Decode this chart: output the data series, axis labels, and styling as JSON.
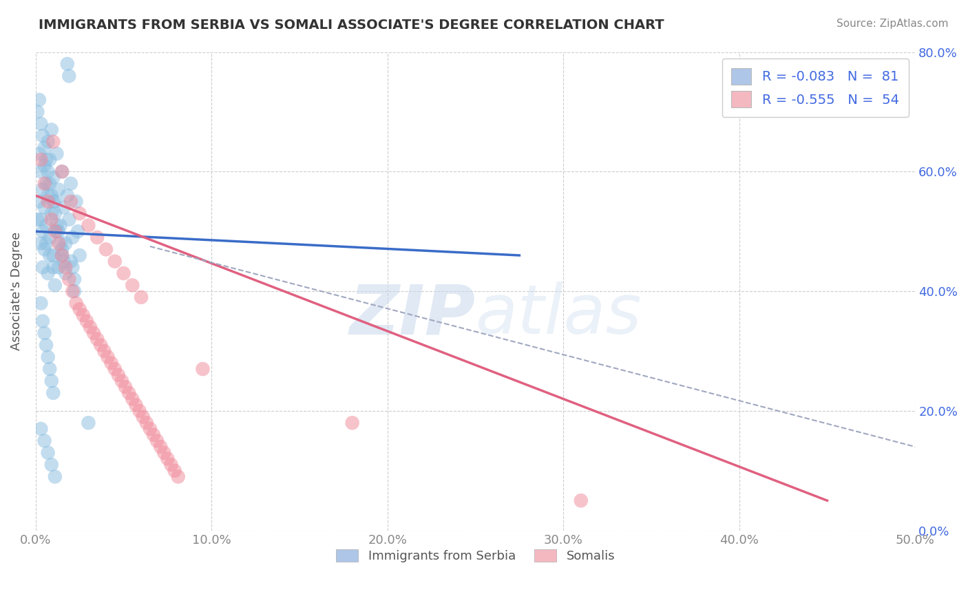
{
  "title": "IMMIGRANTS FROM SERBIA VS SOMALI ASSOCIATE'S DEGREE CORRELATION CHART",
  "source": "Source: ZipAtlas.com",
  "ylabel": "Associate's Degree",
  "xlim": [
    0.0,
    0.5
  ],
  "ylim": [
    0.0,
    0.8
  ],
  "xticks": [
    0.0,
    0.1,
    0.2,
    0.3,
    0.4,
    0.5
  ],
  "xticklabels": [
    "0.0%",
    "10.0%",
    "20.0%",
    "30.0%",
    "40.0%",
    "50.0%"
  ],
  "yticks": [
    0.0,
    0.2,
    0.4,
    0.6,
    0.8
  ],
  "yticklabels": [
    "0.0%",
    "20.0%",
    "40.0%",
    "60.0%",
    "80.0%"
  ],
  "blue_scatter_x": [
    0.001,
    0.002,
    0.002,
    0.003,
    0.003,
    0.004,
    0.004,
    0.005,
    0.005,
    0.005,
    0.006,
    0.006,
    0.007,
    0.007,
    0.007,
    0.008,
    0.008,
    0.009,
    0.009,
    0.01,
    0.01,
    0.011,
    0.011,
    0.012,
    0.012,
    0.013,
    0.013,
    0.014,
    0.015,
    0.015,
    0.016,
    0.017,
    0.018,
    0.019,
    0.02,
    0.021,
    0.022,
    0.023,
    0.024,
    0.025,
    0.001,
    0.002,
    0.003,
    0.004,
    0.005,
    0.006,
    0.007,
    0.008,
    0.009,
    0.01,
    0.011,
    0.012,
    0.013,
    0.014,
    0.015,
    0.016,
    0.017,
    0.018,
    0.019,
    0.02,
    0.021,
    0.022,
    0.003,
    0.004,
    0.005,
    0.006,
    0.007,
    0.008,
    0.009,
    0.01,
    0.003,
    0.005,
    0.007,
    0.009,
    0.011,
    0.003,
    0.004,
    0.006,
    0.008,
    0.01,
    0.03
  ],
  "blue_scatter_y": [
    0.52,
    0.63,
    0.55,
    0.6,
    0.48,
    0.57,
    0.44,
    0.61,
    0.54,
    0.47,
    0.58,
    0.51,
    0.65,
    0.56,
    0.43,
    0.62,
    0.49,
    0.67,
    0.53,
    0.59,
    0.46,
    0.55,
    0.41,
    0.63,
    0.5,
    0.57,
    0.44,
    0.51,
    0.6,
    0.47,
    0.54,
    0.48,
    0.56,
    0.52,
    0.45,
    0.49,
    0.42,
    0.55,
    0.5,
    0.46,
    0.7,
    0.72,
    0.68,
    0.66,
    0.64,
    0.62,
    0.6,
    0.58,
    0.56,
    0.55,
    0.53,
    0.51,
    0.5,
    0.48,
    0.46,
    0.45,
    0.43,
    0.78,
    0.76,
    0.58,
    0.44,
    0.4,
    0.38,
    0.35,
    0.33,
    0.31,
    0.29,
    0.27,
    0.25,
    0.23,
    0.17,
    0.15,
    0.13,
    0.11,
    0.09,
    0.52,
    0.5,
    0.48,
    0.46,
    0.44,
    0.18
  ],
  "pink_scatter_x": [
    0.003,
    0.005,
    0.007,
    0.009,
    0.011,
    0.013,
    0.015,
    0.017,
    0.019,
    0.021,
    0.023,
    0.025,
    0.027,
    0.029,
    0.031,
    0.033,
    0.035,
    0.037,
    0.039,
    0.041,
    0.043,
    0.045,
    0.047,
    0.049,
    0.051,
    0.053,
    0.055,
    0.057,
    0.059,
    0.061,
    0.063,
    0.065,
    0.067,
    0.069,
    0.071,
    0.073,
    0.075,
    0.077,
    0.079,
    0.081,
    0.01,
    0.015,
    0.02,
    0.025,
    0.03,
    0.035,
    0.04,
    0.045,
    0.05,
    0.055,
    0.06,
    0.095,
    0.18,
    0.31
  ],
  "pink_scatter_y": [
    0.62,
    0.58,
    0.55,
    0.52,
    0.5,
    0.48,
    0.46,
    0.44,
    0.42,
    0.4,
    0.38,
    0.37,
    0.36,
    0.35,
    0.34,
    0.33,
    0.32,
    0.31,
    0.3,
    0.29,
    0.28,
    0.27,
    0.26,
    0.25,
    0.24,
    0.23,
    0.22,
    0.21,
    0.2,
    0.19,
    0.18,
    0.17,
    0.16,
    0.15,
    0.14,
    0.13,
    0.12,
    0.11,
    0.1,
    0.09,
    0.65,
    0.6,
    0.55,
    0.53,
    0.51,
    0.49,
    0.47,
    0.45,
    0.43,
    0.41,
    0.39,
    0.27,
    0.18,
    0.05
  ],
  "blue_line_x": [
    0.0,
    0.275
  ],
  "blue_line_y": [
    0.5,
    0.46
  ],
  "pink_line_x": [
    0.0,
    0.45
  ],
  "pink_line_y": [
    0.56,
    0.05
  ],
  "dashed_line_x": [
    0.065,
    0.5
  ],
  "dashed_line_y": [
    0.475,
    0.14
  ],
  "watermark_zip": "ZIP",
  "watermark_atlas": "atlas",
  "background_color": "#ffffff",
  "grid_color": "#cccccc",
  "blue_color": "#89bde0",
  "pink_color": "#f08898",
  "blue_line_color": "#3a6cc8",
  "pink_line_color": "#e06080",
  "dashed_color": "#a0a8c0",
  "right_ytick_color": "#4169e1",
  "title_color": "#333333",
  "source_color": "#888888",
  "ylabel_color": "#555555",
  "tick_label_color": "#888888"
}
